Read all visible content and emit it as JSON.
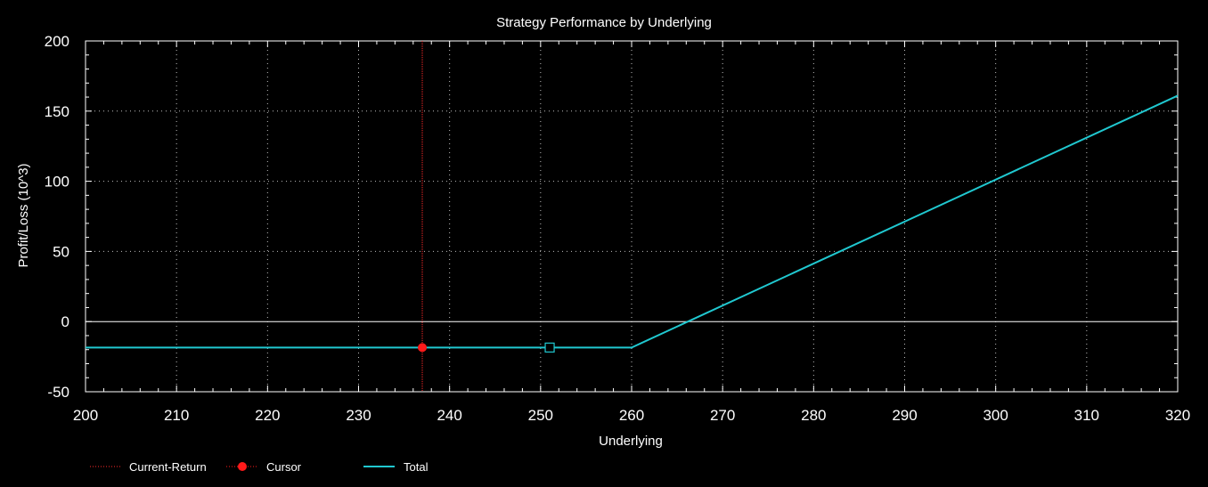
{
  "chart_data": {
    "type": "line",
    "title": "Strategy Performance by Underlying",
    "xlabel": "Underlying",
    "ylabel": "Profit/Loss (10^3)",
    "xlim": [
      200,
      320
    ],
    "ylim": [
      -50,
      200
    ],
    "x_ticks": [
      200,
      210,
      220,
      230,
      240,
      250,
      260,
      270,
      280,
      290,
      300,
      310,
      320
    ],
    "y_ticks": [
      -50,
      0,
      50,
      100,
      150,
      200
    ],
    "grid": true,
    "zero_line": true,
    "legend_position": "bottom-left",
    "series": [
      {
        "name": "Total",
        "color": "#20c8d0",
        "x": [
          200,
          260,
          320
        ],
        "y": [
          -18.5,
          -18.5,
          161
        ]
      }
    ],
    "current_return": {
      "name": "Current-Return",
      "x": 237,
      "color": "#ff2a2a"
    },
    "cursor": {
      "name": "Cursor",
      "x": 237,
      "y": -18.5,
      "color": "#ff1a1a"
    },
    "marker": {
      "x": 251,
      "y": -18.5,
      "shape": "square",
      "color": "#20c8d0"
    }
  }
}
